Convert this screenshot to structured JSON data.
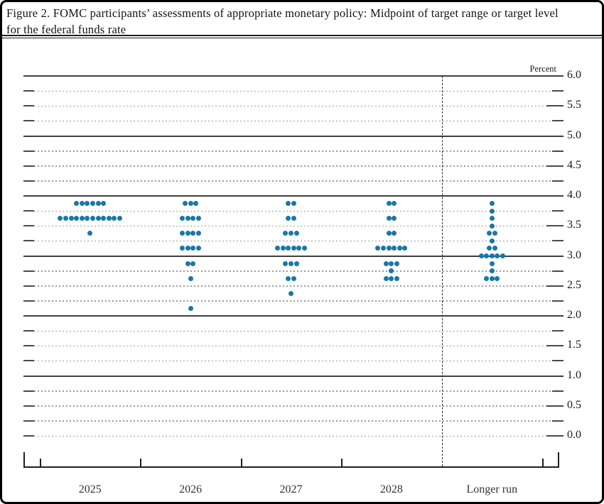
{
  "figure": {
    "title": "Figure 2. FOMC participants’ assessments of appropriate monetary policy: Midpoint of target range or target level for the federal funds rate"
  },
  "chart_data": {
    "type": "scatter",
    "subtype": "fomc-dot-plot",
    "title": "Figure 2. FOMC participants’ assessments of appropriate monetary policy: Midpoint of target range or target level for the federal funds rate",
    "unit_label": "Percent",
    "categories": [
      "2025",
      "2026",
      "2027",
      "2028",
      "Longer run"
    ],
    "divider_before_category": "Longer run",
    "ylim": [
      0.0,
      6.0
    ],
    "gridline_step": 0.25,
    "label_step": 0.5,
    "ytick_labels": [
      "6.0",
      "5.5",
      "5.0",
      "4.5",
      "4.0",
      "3.5",
      "3.0",
      "2.5",
      "2.0",
      "1.5",
      "1.0",
      "0.5",
      "0.0"
    ],
    "grid": true,
    "legend_position": "none",
    "dot_color": "#1878a8",
    "dots_per_participant_total": 19,
    "series": [
      {
        "category": "2025",
        "dots": [
          {
            "value": 3.875,
            "count": 6
          },
          {
            "value": 3.625,
            "count": 12
          },
          {
            "value": 3.375,
            "count": 1
          }
        ]
      },
      {
        "category": "2026",
        "dots": [
          {
            "value": 3.875,
            "count": 3
          },
          {
            "value": 3.625,
            "count": 4
          },
          {
            "value": 3.375,
            "count": 4
          },
          {
            "value": 3.125,
            "count": 4
          },
          {
            "value": 2.875,
            "count": 2
          },
          {
            "value": 2.625,
            "count": 1
          },
          {
            "value": 2.125,
            "count": 1
          }
        ]
      },
      {
        "category": "2027",
        "dots": [
          {
            "value": 3.875,
            "count": 2
          },
          {
            "value": 3.625,
            "count": 2
          },
          {
            "value": 3.375,
            "count": 3
          },
          {
            "value": 3.125,
            "count": 6
          },
          {
            "value": 2.875,
            "count": 3
          },
          {
            "value": 2.625,
            "count": 2
          },
          {
            "value": 2.375,
            "count": 1
          }
        ]
      },
      {
        "category": "2028",
        "dots": [
          {
            "value": 3.875,
            "count": 2
          },
          {
            "value": 3.625,
            "count": 2
          },
          {
            "value": 3.375,
            "count": 2
          },
          {
            "value": 3.125,
            "count": 6
          },
          {
            "value": 2.875,
            "count": 3
          },
          {
            "value": 2.75,
            "count": 1
          },
          {
            "value": 2.625,
            "count": 3
          }
        ]
      },
      {
        "category": "Longer run",
        "dots": [
          {
            "value": 3.875,
            "count": 1
          },
          {
            "value": 3.75,
            "count": 1
          },
          {
            "value": 3.625,
            "count": 1
          },
          {
            "value": 3.5,
            "count": 1
          },
          {
            "value": 3.375,
            "count": 2
          },
          {
            "value": 3.25,
            "count": 1
          },
          {
            "value": 3.125,
            "count": 2
          },
          {
            "value": 3.0,
            "count": 5
          },
          {
            "value": 2.875,
            "count": 1
          },
          {
            "value": 2.75,
            "count": 1
          },
          {
            "value": 2.625,
            "count": 3
          }
        ]
      }
    ]
  }
}
